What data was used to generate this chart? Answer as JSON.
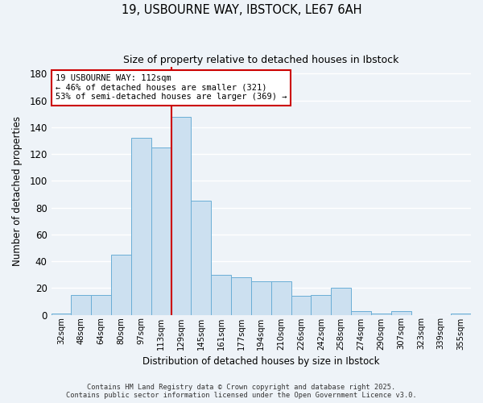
{
  "title_line1": "19, USBOURNE WAY, IBSTOCK, LE67 6AH",
  "title_line2": "Size of property relative to detached houses in Ibstock",
  "xlabel": "Distribution of detached houses by size in Ibstock",
  "ylabel": "Number of detached properties",
  "bar_labels": [
    "32sqm",
    "48sqm",
    "64sqm",
    "80sqm",
    "97sqm",
    "113sqm",
    "129sqm",
    "145sqm",
    "161sqm",
    "177sqm",
    "194sqm",
    "210sqm",
    "226sqm",
    "242sqm",
    "258sqm",
    "274sqm",
    "290sqm",
    "307sqm",
    "323sqm",
    "339sqm",
    "355sqm"
  ],
  "bar_values": [
    1,
    15,
    15,
    45,
    132,
    125,
    148,
    85,
    30,
    28,
    25,
    25,
    14,
    15,
    20,
    3,
    1,
    3,
    0,
    0,
    1
  ],
  "bar_color": "#cce0f0",
  "bar_edge_color": "#6aaed6",
  "background_color": "#eef3f8",
  "grid_color": "#d0dce8",
  "red_line_x": 5.5,
  "annotation_text": "19 USBOURNE WAY: 112sqm\n← 46% of detached houses are smaller (321)\n53% of semi-detached houses are larger (369) →",
  "annotation_box_color": "#ffffff",
  "annotation_box_edge_color": "#cc0000",
  "footer_line1": "Contains HM Land Registry data © Crown copyright and database right 2025.",
  "footer_line2": "Contains public sector information licensed under the Open Government Licence v3.0.",
  "ylim": [
    0,
    185
  ],
  "yticks": [
    0,
    20,
    40,
    60,
    80,
    100,
    120,
    140,
    160,
    180
  ]
}
